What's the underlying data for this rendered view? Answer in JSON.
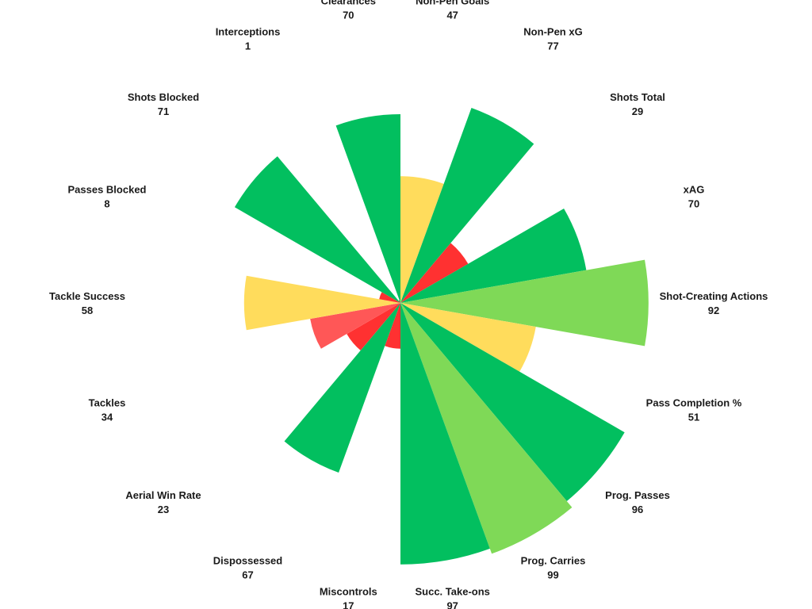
{
  "chart_data": {
    "type": "pie",
    "title": "",
    "colors": {
      "green": "#02bf5f",
      "light_green": "#7fd957",
      "yellow": "#ffdc5c",
      "red": "#ff3131",
      "light_red": "#ff5757"
    },
    "slices": [
      {
        "label": "Non-Pen Goals",
        "value": 47,
        "color": "yellow"
      },
      {
        "label": "Non-Pen xG",
        "value": 77,
        "color": "green"
      },
      {
        "label": "Shots Total",
        "value": 29,
        "color": "red"
      },
      {
        "label": "xAG",
        "value": 70,
        "color": "green"
      },
      {
        "label": "Shot-Creating Actions",
        "value": 92,
        "color": "light_green"
      },
      {
        "label": "Pass Completion %",
        "value": 51,
        "color": "yellow"
      },
      {
        "label": "Prog. Passes",
        "value": 96,
        "color": "green"
      },
      {
        "label": "Prog. Carries",
        "value": 99,
        "color": "light_green"
      },
      {
        "label": "Succ. Take-ons",
        "value": 97,
        "color": "green"
      },
      {
        "label": "Miscontrols",
        "value": 17,
        "color": "red"
      },
      {
        "label": "Dispossessed",
        "value": 67,
        "color": "green"
      },
      {
        "label": "Aerial Win Rate",
        "value": 23,
        "color": "red"
      },
      {
        "label": "Tackles",
        "value": 34,
        "color": "light_red"
      },
      {
        "label": "Tackle Success",
        "value": 58,
        "color": "yellow"
      },
      {
        "label": "Passes Blocked",
        "value": 8,
        "color": "red"
      },
      {
        "label": "Shots Blocked",
        "value": 71,
        "color": "green"
      },
      {
        "label": "Interceptions",
        "value": 1,
        "color": "red"
      },
      {
        "label": "Clearances",
        "value": 70,
        "color": "green"
      }
    ]
  }
}
